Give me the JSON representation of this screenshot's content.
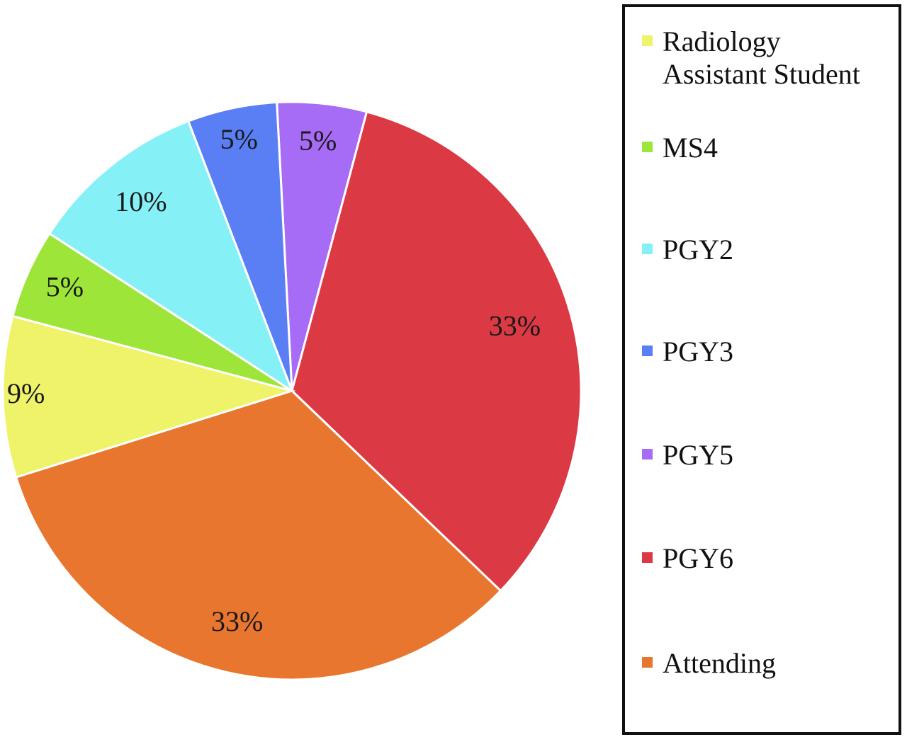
{
  "chart_data": {
    "type": "pie",
    "start_angle_deg": -3,
    "direction": "clockwise",
    "slices": [
      {
        "label": "PGY5",
        "value": 5,
        "display": "5%",
        "color": "#a66cf5"
      },
      {
        "label": "PGY6",
        "value": 33,
        "display": "33%",
        "color": "#db3a45"
      },
      {
        "label": "Attending",
        "value": 33,
        "display": "33%",
        "color": "#e8762e"
      },
      {
        "label": "Radiology Assistant Student",
        "value": 9,
        "display": "9%",
        "color": "#eef36a"
      },
      {
        "label": "MS4",
        "value": 5,
        "display": "5%",
        "color": "#9ee53a"
      },
      {
        "label": "PGY2",
        "value": 10,
        "display": "10%",
        "color": "#86f0f7"
      },
      {
        "label": "PGY3",
        "value": 5,
        "display": "5%",
        "color": "#5a7ff5"
      }
    ],
    "legend": {
      "placement": "right",
      "entries": [
        {
          "label_lines": [
            "Radiology",
            "Assistant Student"
          ],
          "color": "#eef36a"
        },
        {
          "label_lines": [
            "MS4"
          ],
          "color": "#9ee53a"
        },
        {
          "label_lines": [
            "PGY2"
          ],
          "color": "#86f0f7"
        },
        {
          "label_lines": [
            "PGY3"
          ],
          "color": "#5a7ff5"
        },
        {
          "label_lines": [
            "PGY5"
          ],
          "color": "#a66cf5"
        },
        {
          "label_lines": [
            "PGY6"
          ],
          "color": "#db3a45"
        },
        {
          "label_lines": [
            "Attending"
          ],
          "color": "#e8762e"
        }
      ]
    }
  }
}
